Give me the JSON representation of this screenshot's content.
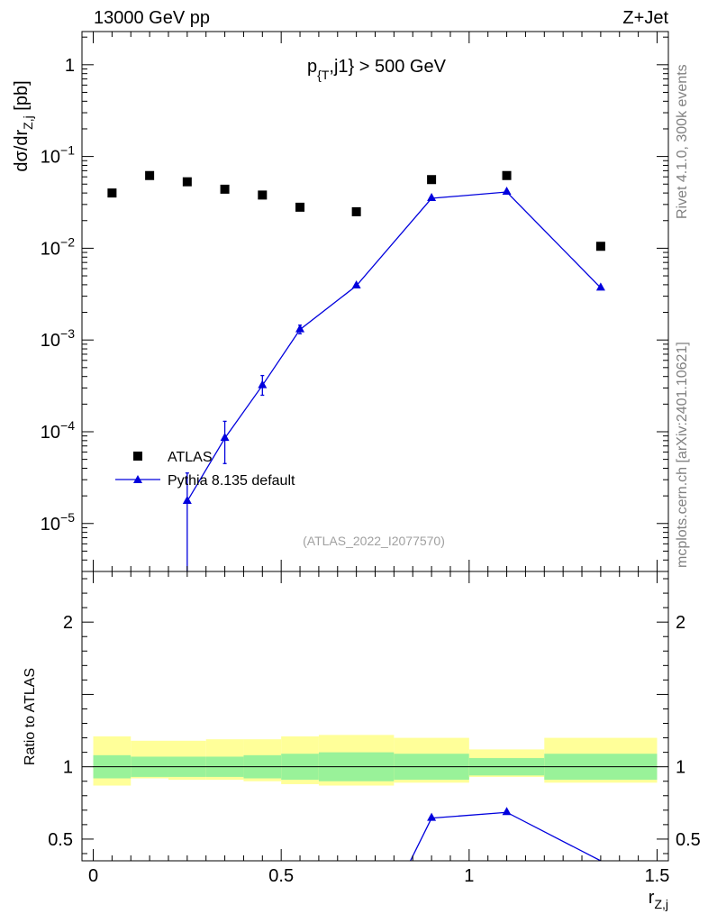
{
  "header": {
    "left": "13000 GeV pp",
    "right": "Z+Jet"
  },
  "side_texts": {
    "rivet": "Rivet 4.1.0,  300k events",
    "mcplots": "mcplots.cern.ch [arXiv:2401.10621]"
  },
  "chart_data": {
    "type": "scatter",
    "title": "p_{T},j1} > 500 GeV",
    "analysis_label": "(ATLAS_2022_I2077570)",
    "main": {
      "ylabel": "dσ/dr_{Z,j} [pb]",
      "yscale": "log",
      "ylim": [
        3e-06,
        2.3
      ],
      "y_ticks": [
        {
          "value": 1e-05,
          "label": "10^-5"
        },
        {
          "value": 0.0001,
          "label": "10^-4"
        },
        {
          "value": 0.001,
          "label": "10^-3"
        },
        {
          "value": 0.01,
          "label": "10^-2"
        },
        {
          "value": 0.1,
          "label": "10^-1"
        },
        {
          "value": 1,
          "label": "1"
        }
      ]
    },
    "ratio": {
      "ylabel": "Ratio to ATLAS",
      "ylim": [
        0.35,
        2.35
      ],
      "y_ticks": [
        {
          "value": 0.5,
          "label": "0.5"
        },
        {
          "value": 1,
          "label": "1"
        },
        {
          "value": 2,
          "label": "2"
        }
      ]
    },
    "xlabel": "r_{Z,j}",
    "xlim": [
      -0.03,
      1.53
    ],
    "x_ticks": [
      {
        "value": 0,
        "label": "0"
      },
      {
        "value": 0.5,
        "label": "0.5"
      },
      {
        "value": 1,
        "label": "1"
      },
      {
        "value": 1.5,
        "label": "1.5"
      }
    ],
    "legend": {
      "position": "bottom-left"
    },
    "series": [
      {
        "name": "ATLAS",
        "style": "square-markers",
        "color": "#000000",
        "x": [
          0.05,
          0.15,
          0.25,
          0.35,
          0.45,
          0.55,
          0.7,
          0.9,
          1.1,
          1.35
        ],
        "y": [
          0.04,
          0.062,
          0.053,
          0.044,
          0.038,
          0.028,
          0.025,
          0.056,
          0.062,
          0.0105
        ]
      },
      {
        "name": "Pythia 8.135 default",
        "style": "line-triangles",
        "color": "#0000dd",
        "x": [
          0.25,
          0.35,
          0.45,
          0.55,
          0.7,
          0.9,
          1.1,
          1.35
        ],
        "y": [
          1.75e-05,
          8.5e-05,
          0.00032,
          0.0013,
          0.0039,
          0.035,
          0.041,
          0.0037
        ],
        "y_err_low": [
          1.74e-05,
          4e-05,
          7e-05,
          0.00013,
          0.0002,
          0.0008,
          0.001,
          0.0002
        ],
        "y_err_high": [
          1.8e-05,
          4.5e-05,
          9e-05,
          0.00015,
          0.0002,
          0.0008,
          0.001,
          0.0002
        ],
        "ratio": [
          null,
          null,
          null,
          null,
          null,
          0.645,
          0.685,
          0.35
        ]
      }
    ],
    "ratio_bands": {
      "bin_edges": [
        0.0,
        0.1,
        0.2,
        0.3,
        0.4,
        0.5,
        0.6,
        0.8,
        1.0,
        1.2,
        1.5
      ],
      "inner_low": [
        0.92,
        0.93,
        0.93,
        0.93,
        0.92,
        0.91,
        0.9,
        0.91,
        0.94,
        0.91
      ],
      "inner_high": [
        1.08,
        1.07,
        1.07,
        1.07,
        1.08,
        1.09,
        1.1,
        1.09,
        1.06,
        1.09
      ],
      "outer_low": [
        0.87,
        0.92,
        0.91,
        0.91,
        0.9,
        0.88,
        0.87,
        0.89,
        0.93,
        0.89
      ],
      "outer_high": [
        1.21,
        1.18,
        1.18,
        1.19,
        1.19,
        1.21,
        1.22,
        1.2,
        1.12,
        1.2
      ],
      "inner_color": "#99f299",
      "outer_color": "#ffff99"
    }
  }
}
